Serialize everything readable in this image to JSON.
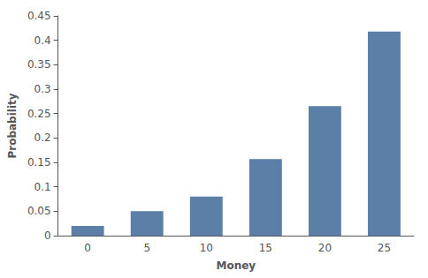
{
  "chart_data": {
    "type": "bar",
    "categories": [
      "0",
      "5",
      "10",
      "15",
      "20",
      "25"
    ],
    "values": [
      0.02,
      0.05,
      0.08,
      0.157,
      0.265,
      0.418
    ],
    "color": "#5b7fa6",
    "xlabel": "Money",
    "ylabel": "Probability",
    "ylim": [
      0,
      0.45
    ],
    "yticks": [
      0,
      0.05,
      0.1,
      0.15,
      0.2,
      0.25,
      0.3,
      0.35,
      0.4,
      0.45
    ],
    "grid": false
  }
}
